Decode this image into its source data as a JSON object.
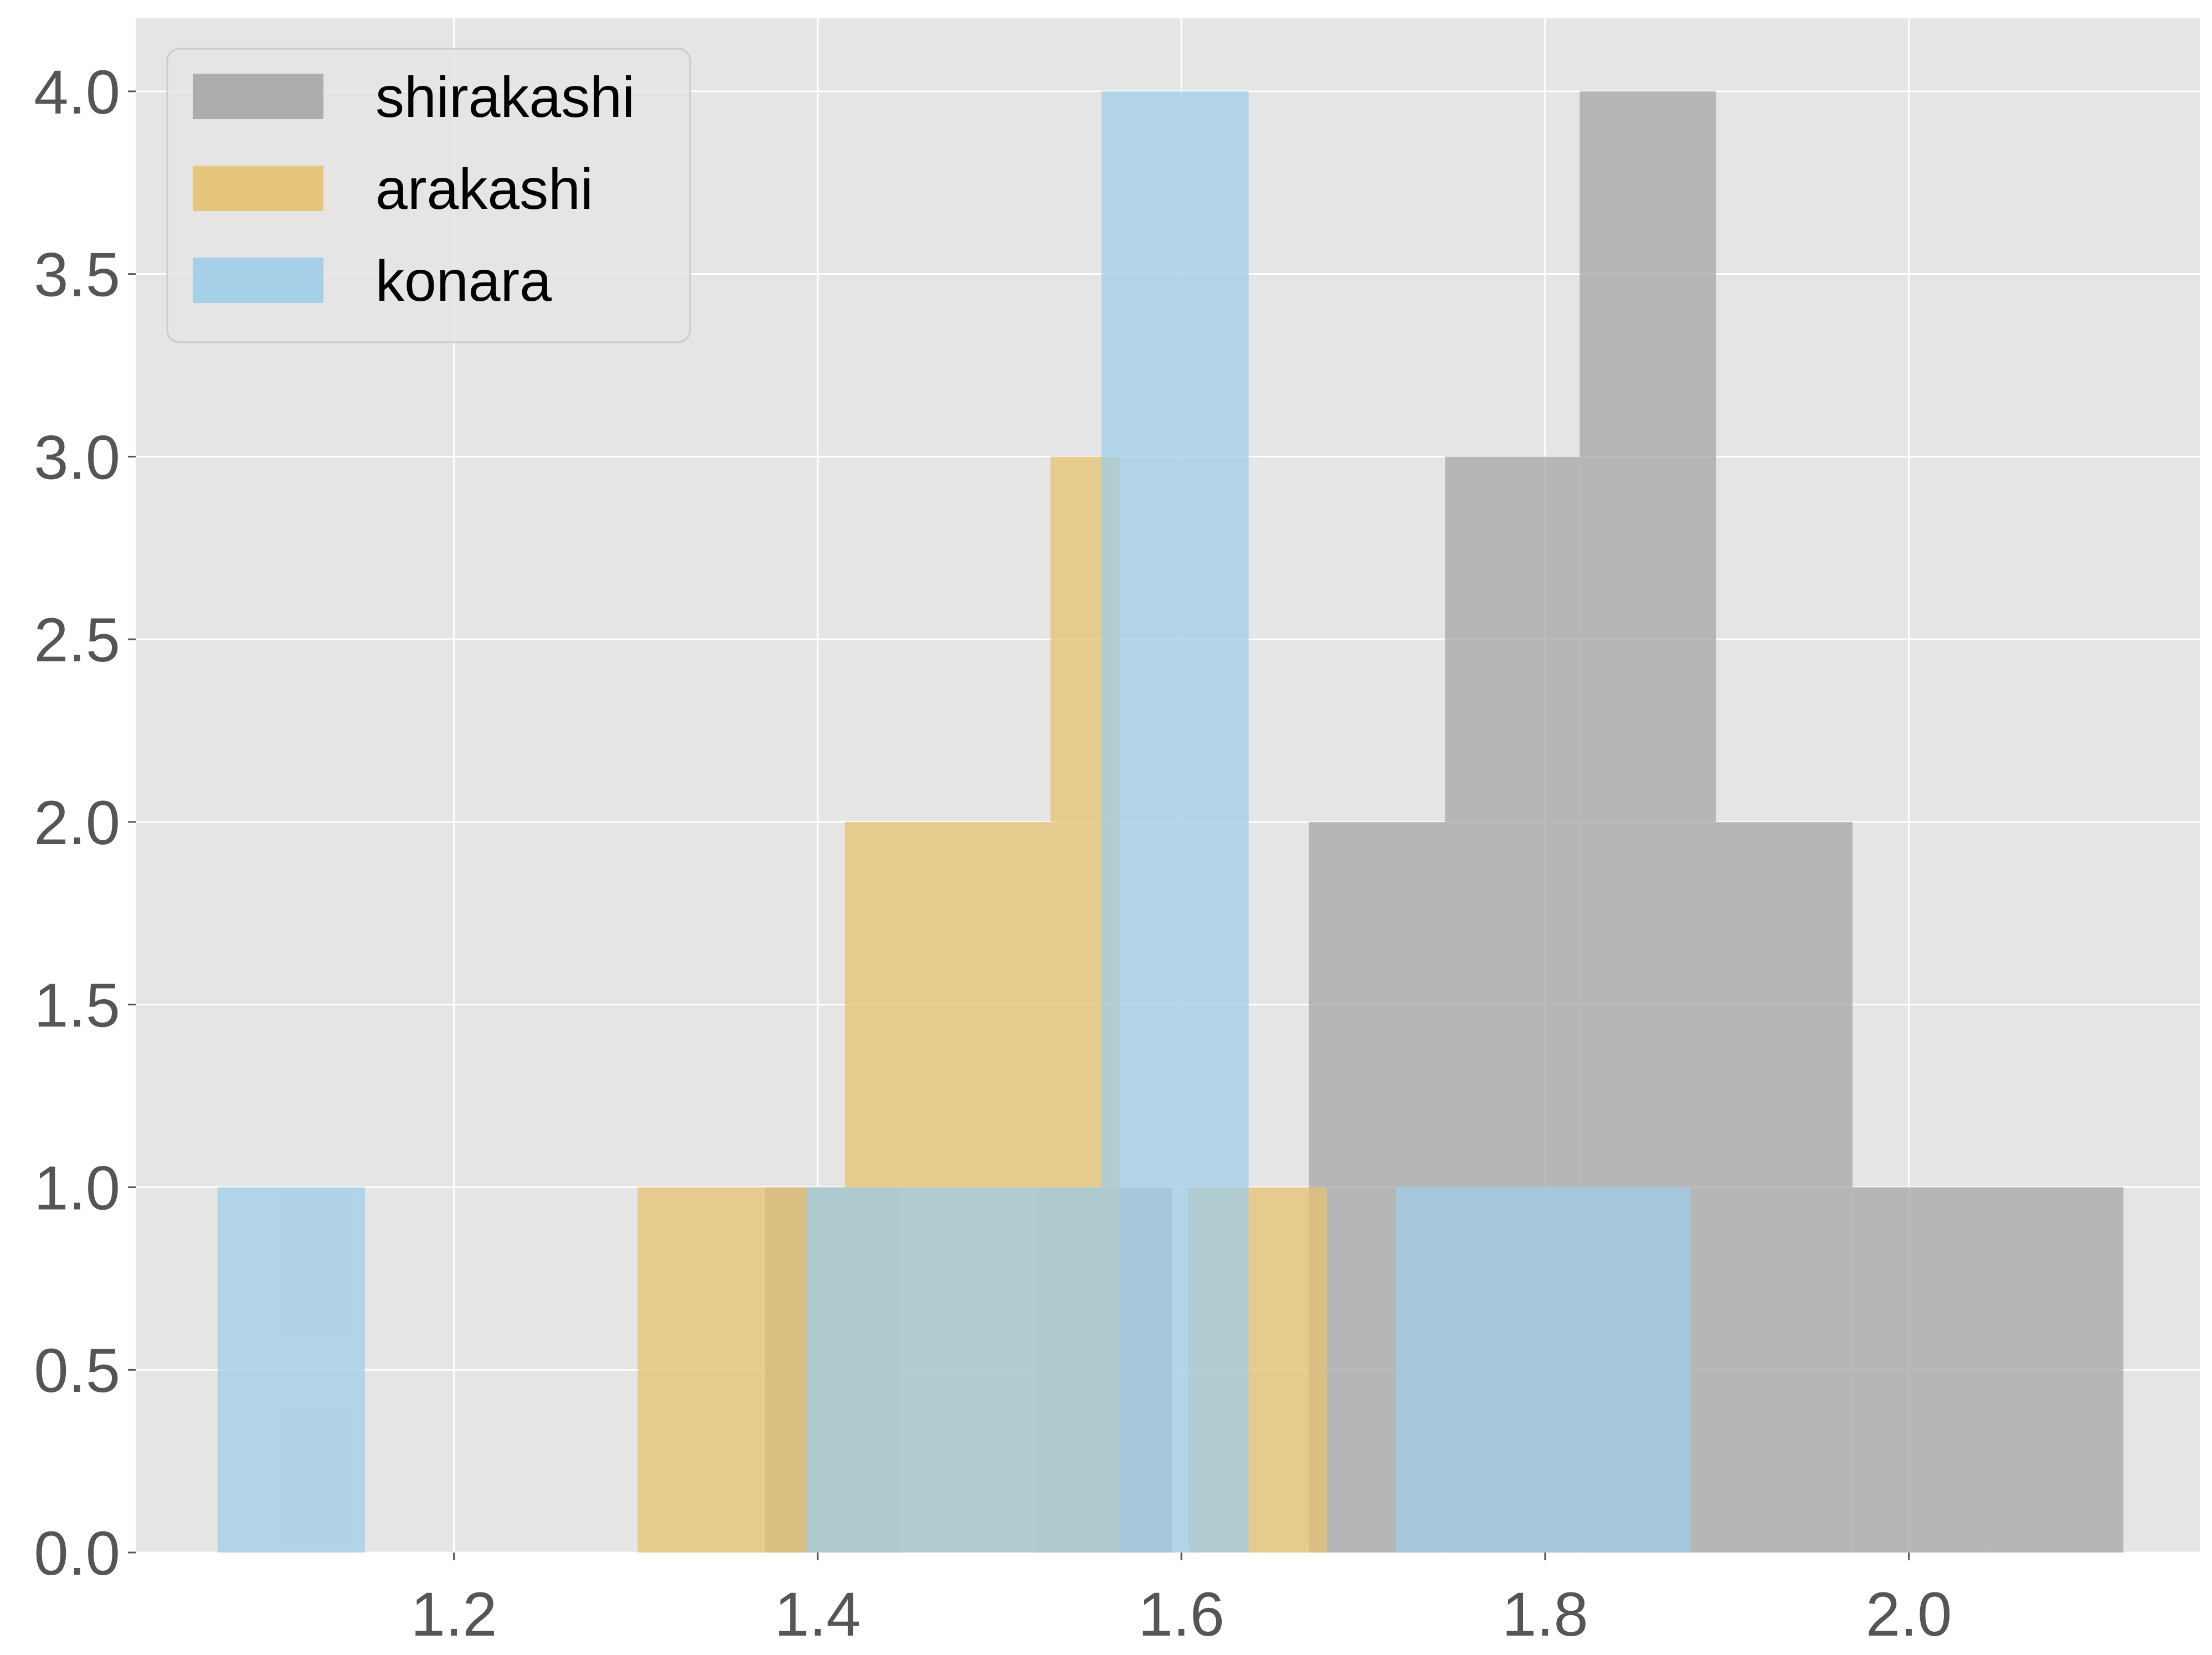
{
  "chart_data": {
    "type": "bar",
    "title": "",
    "xlabel": "",
    "ylabel": "",
    "xlim": [
      1.025,
      2.16
    ],
    "ylim": [
      0.0,
      4.2
    ],
    "x_ticks": [
      "1.2",
      "1.4",
      "1.6",
      "1.8",
      "2.0"
    ],
    "y_ticks": [
      "0.0",
      "0.5",
      "1.0",
      "1.5",
      "2.0",
      "2.5",
      "3.0",
      "3.5",
      "4.0"
    ],
    "grid": true,
    "legend_position": "top-left",
    "series": [
      {
        "name": "shirakashi",
        "color": "#a6a6a6",
        "bin_edges": [
          1.371,
          1.446,
          1.52,
          1.595,
          1.67,
          1.745,
          1.819,
          1.894,
          1.969,
          2.043,
          2.118
        ],
        "counts": [
          1,
          0,
          1,
          0,
          2,
          3,
          4,
          2,
          1,
          1
        ]
      },
      {
        "name": "arakashi",
        "color": "#e6c271",
        "bin_edges": [
          1.301,
          1.339,
          1.377,
          1.415,
          1.452,
          1.49,
          1.528,
          1.566,
          1.604,
          1.642,
          1.68
        ],
        "counts": [
          1,
          1,
          1,
          2,
          2,
          2,
          3,
          0,
          1,
          1
        ]
      },
      {
        "name": "konara",
        "color": "#9fcde8",
        "bin_edges": [
          1.07,
          1.151,
          1.232,
          1.313,
          1.394,
          1.475,
          1.556,
          1.637,
          1.718,
          1.799,
          1.88
        ],
        "counts": [
          1,
          0,
          0,
          0,
          1,
          1,
          4,
          0,
          1,
          1
        ]
      }
    ]
  }
}
